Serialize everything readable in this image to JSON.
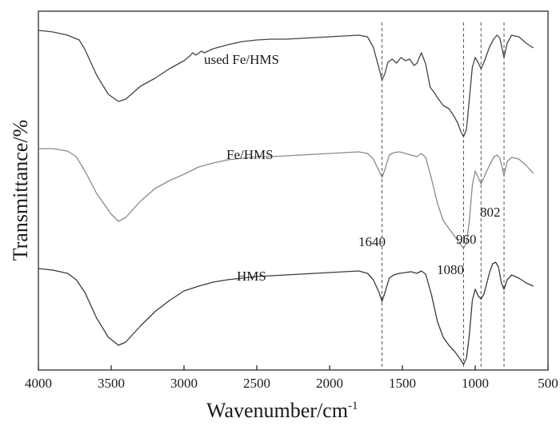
{
  "chart_data": {
    "type": "line",
    "xlabel": "Wavenumber/cm",
    "xlabel_sup": "-1",
    "ylabel": "Transmittance/%",
    "xlim": [
      4000,
      500
    ],
    "x_reversed": true,
    "y_ticks_shown": false,
    "grid": false,
    "x_ticks": [
      4000,
      3500,
      3000,
      2500,
      2000,
      1500,
      1000,
      500
    ],
    "x_tick_labels": [
      "4000",
      "3500",
      "3000",
      "2500",
      "2000",
      "1500",
      "1000",
      "500"
    ],
    "reference_lines": [
      1640,
      1080,
      960,
      802
    ],
    "annotations": [
      "1640",
      "1080",
      "960",
      "802"
    ],
    "series": [
      {
        "name": "used Fe/HMS",
        "color": "#444444",
        "points": [
          [
            4000,
            24
          ],
          [
            3900,
            26
          ],
          [
            3800,
            30
          ],
          [
            3720,
            36
          ],
          [
            3680,
            48
          ],
          [
            3600,
            80
          ],
          [
            3520,
            104
          ],
          [
            3450,
            113
          ],
          [
            3400,
            110
          ],
          [
            3300,
            94
          ],
          [
            3200,
            84
          ],
          [
            3100,
            72
          ],
          [
            3000,
            62
          ],
          [
            2960,
            56
          ],
          [
            2940,
            52
          ],
          [
            2920,
            55
          ],
          [
            2880,
            50
          ],
          [
            2860,
            52
          ],
          [
            2800,
            47
          ],
          [
            2700,
            42
          ],
          [
            2600,
            38
          ],
          [
            2500,
            36
          ],
          [
            2400,
            35
          ],
          [
            2300,
            35
          ],
          [
            2200,
            34
          ],
          [
            2100,
            33
          ],
          [
            2000,
            32
          ],
          [
            1900,
            31
          ],
          [
            1800,
            30
          ],
          [
            1740,
            32
          ],
          [
            1700,
            45
          ],
          [
            1660,
            72
          ],
          [
            1640,
            86
          ],
          [
            1620,
            78
          ],
          [
            1600,
            64
          ],
          [
            1570,
            60
          ],
          [
            1540,
            65
          ],
          [
            1510,
            58
          ],
          [
            1480,
            62
          ],
          [
            1450,
            60
          ],
          [
            1420,
            68
          ],
          [
            1400,
            65
          ],
          [
            1370,
            52
          ],
          [
            1340,
            66
          ],
          [
            1310,
            95
          ],
          [
            1280,
            102
          ],
          [
            1260,
            108
          ],
          [
            1220,
            118
          ],
          [
            1180,
            122
          ],
          [
            1150,
            130
          ],
          [
            1120,
            140
          ],
          [
            1100,
            150
          ],
          [
            1080,
            157
          ],
          [
            1060,
            148
          ],
          [
            1040,
            110
          ],
          [
            1020,
            70
          ],
          [
            1000,
            58
          ],
          [
            980,
            64
          ],
          [
            960,
            72
          ],
          [
            940,
            64
          ],
          [
            900,
            44
          ],
          [
            870,
            34
          ],
          [
            850,
            30
          ],
          [
            830,
            34
          ],
          [
            802,
            58
          ],
          [
            780,
            40
          ],
          [
            750,
            30
          ],
          [
            700,
            32
          ],
          [
            650,
            40
          ],
          [
            600,
            46
          ]
        ]
      },
      {
        "name": "Fe/HMS",
        "color": "#8a8a8a",
        "points": [
          [
            4000,
            172
          ],
          [
            3900,
            172
          ],
          [
            3800,
            175
          ],
          [
            3740,
            182
          ],
          [
            3680,
            200
          ],
          [
            3600,
            228
          ],
          [
            3500,
            254
          ],
          [
            3450,
            263
          ],
          [
            3400,
            258
          ],
          [
            3300,
            238
          ],
          [
            3200,
            222
          ],
          [
            3100,
            212
          ],
          [
            3000,
            204
          ],
          [
            2900,
            195
          ],
          [
            2800,
            190
          ],
          [
            2700,
            186
          ],
          [
            2600,
            184
          ],
          [
            2500,
            182
          ],
          [
            2400,
            182
          ],
          [
            2300,
            181
          ],
          [
            2200,
            180
          ],
          [
            2100,
            179
          ],
          [
            2000,
            178
          ],
          [
            1900,
            177
          ],
          [
            1800,
            176
          ],
          [
            1740,
            178
          ],
          [
            1700,
            185
          ],
          [
            1660,
            200
          ],
          [
            1640,
            208
          ],
          [
            1620,
            198
          ],
          [
            1590,
            180
          ],
          [
            1560,
            177
          ],
          [
            1520,
            176
          ],
          [
            1480,
            178
          ],
          [
            1440,
            180
          ],
          [
            1400,
            182
          ],
          [
            1370,
            178
          ],
          [
            1340,
            183
          ],
          [
            1300,
            210
          ],
          [
            1260,
            240
          ],
          [
            1220,
            262
          ],
          [
            1180,
            272
          ],
          [
            1140,
            282
          ],
          [
            1100,
            292
          ],
          [
            1080,
            297
          ],
          [
            1060,
            290
          ],
          [
            1040,
            262
          ],
          [
            1020,
            218
          ],
          [
            1000,
            200
          ],
          [
            980,
            208
          ],
          [
            960,
            216
          ],
          [
            940,
            208
          ],
          [
            900,
            192
          ],
          [
            870,
            182
          ],
          [
            850,
            180
          ],
          [
            830,
            184
          ],
          [
            802,
            206
          ],
          [
            780,
            188
          ],
          [
            750,
            183
          ],
          [
            700,
            185
          ],
          [
            650,
            193
          ],
          [
            600,
            203
          ]
        ]
      },
      {
        "name": "HMS",
        "color": "#3a3a3a",
        "points": [
          [
            4000,
            322
          ],
          [
            3900,
            324
          ],
          [
            3800,
            328
          ],
          [
            3740,
            336
          ],
          [
            3680,
            352
          ],
          [
            3600,
            384
          ],
          [
            3520,
            408
          ],
          [
            3450,
            418
          ],
          [
            3400,
            414
          ],
          [
            3300,
            394
          ],
          [
            3200,
            376
          ],
          [
            3100,
            362
          ],
          [
            3000,
            350
          ],
          [
            2900,
            344
          ],
          [
            2800,
            339
          ],
          [
            2700,
            336
          ],
          [
            2600,
            334
          ],
          [
            2500,
            332
          ],
          [
            2400,
            331
          ],
          [
            2300,
            330
          ],
          [
            2200,
            329
          ],
          [
            2100,
            328
          ],
          [
            2000,
            327
          ],
          [
            1900,
            326
          ],
          [
            1800,
            325
          ],
          [
            1740,
            328
          ],
          [
            1700,
            336
          ],
          [
            1660,
            352
          ],
          [
            1640,
            363
          ],
          [
            1620,
            352
          ],
          [
            1590,
            334
          ],
          [
            1560,
            330
          ],
          [
            1520,
            328
          ],
          [
            1480,
            327
          ],
          [
            1440,
            326
          ],
          [
            1400,
            328
          ],
          [
            1370,
            325
          ],
          [
            1340,
            329
          ],
          [
            1300,
            355
          ],
          [
            1260,
            388
          ],
          [
            1220,
            408
          ],
          [
            1180,
            418
          ],
          [
            1140,
            426
          ],
          [
            1100,
            436
          ],
          [
            1080,
            442
          ],
          [
            1060,
            434
          ],
          [
            1040,
            405
          ],
          [
            1020,
            362
          ],
          [
            1000,
            348
          ],
          [
            980,
            356
          ],
          [
            960,
            360
          ],
          [
            940,
            354
          ],
          [
            900,
            326
          ],
          [
            880,
            316
          ],
          [
            860,
            314
          ],
          [
            840,
            320
          ],
          [
            820,
            340
          ],
          [
            802,
            348
          ],
          [
            780,
            336
          ],
          [
            750,
            330
          ],
          [
            700,
            334
          ],
          [
            650,
            340
          ],
          [
            600,
            344
          ]
        ]
      }
    ]
  }
}
